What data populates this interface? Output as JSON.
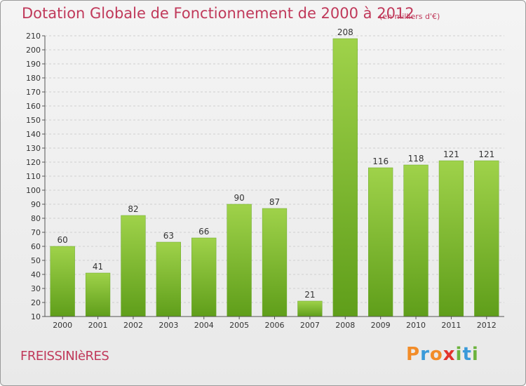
{
  "header": {
    "title": "Dotation Globale de Fonctionnement de 2000 à 2012",
    "subtitle": "(en milliers d'€)"
  },
  "footer": {
    "commune": "FREISSINIèRES",
    "logo_letters": [
      "P",
      "r",
      "o",
      "x",
      "i",
      "t",
      "i"
    ],
    "logo_colors": [
      "#f28c28",
      "#3a9ad9",
      "#f28c28",
      "#e2332c",
      "#6cb33e",
      "#3a9ad9",
      "#6cb33e"
    ]
  },
  "chart_data": {
    "type": "bar",
    "categories": [
      "2000",
      "2001",
      "2002",
      "2003",
      "2004",
      "2005",
      "2006",
      "2007",
      "2008",
      "2009",
      "2010",
      "2011",
      "2012"
    ],
    "values": [
      60,
      41,
      82,
      63,
      66,
      90,
      87,
      21,
      208,
      116,
      118,
      121,
      121
    ],
    "ylim": [
      10,
      210
    ],
    "yticks": [
      10,
      20,
      30,
      40,
      50,
      60,
      70,
      80,
      90,
      100,
      110,
      120,
      130,
      140,
      150,
      160,
      170,
      180,
      190,
      200,
      210
    ],
    "grid": true,
    "bar_color": "#7cbf2e",
    "legend": "none"
  }
}
